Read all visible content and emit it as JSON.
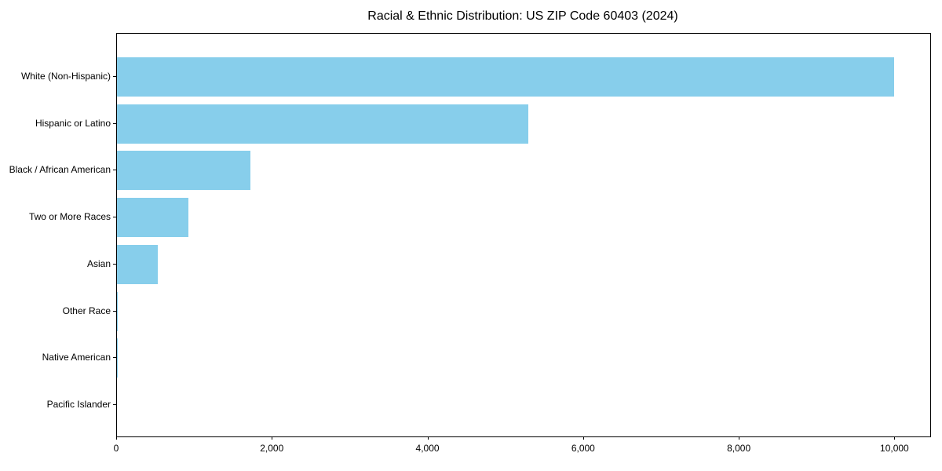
{
  "figure": {
    "background_color": "#FFFFFF",
    "axis_color": "#000000",
    "text_color": "#000000"
  },
  "chart_data": {
    "type": "bar",
    "orientation": "horizontal",
    "title": "Racial & Ethnic Distribution: US ZIP Code 60403 (2024)",
    "xlabel": "",
    "ylabel": "",
    "categories": [
      "White (Non-Hispanic)",
      "Hispanic or Latino",
      "Black / African American",
      "Two or More Races",
      "Asian",
      "Other Race",
      "Native American",
      "Pacific Islander"
    ],
    "values": [
      9990,
      5290,
      1710,
      920,
      520,
      15,
      3,
      0
    ],
    "bar_color": "#87CEEB",
    "xlim": [
      0,
      10450
    ],
    "x_tick_values": [
      0,
      2000,
      4000,
      6000,
      8000,
      10000
    ],
    "x_tick_labels": [
      "0",
      "2,000",
      "4,000",
      "6,000",
      "8,000",
      "10,000"
    ],
    "grid": false,
    "legend": null
  }
}
